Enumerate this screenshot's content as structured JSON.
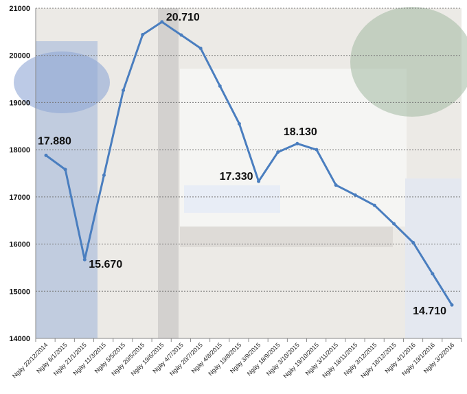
{
  "chart_data": {
    "type": "line",
    "title": "",
    "xlabel": "",
    "ylabel": "",
    "ylim": [
      14000,
      21000
    ],
    "yticks": [
      "14000",
      "15000",
      "16000",
      "17000",
      "18000",
      "19000",
      "20000",
      "21000"
    ],
    "grid": true,
    "legend": "none",
    "line_color": "#4a7ebf",
    "categories": [
      "Ngày 22/12/2014",
      "Ngày 6/1/2015",
      "Ngày 21/1/2015",
      "Ngày 11/3/2015",
      "Ngày 5/5/2015",
      "Ngày 20/5/2015",
      "Ngày 19/6/2015",
      "Ngày 4/7/2015",
      "Ngày 20/7/2015",
      "Ngày 4/8/2015",
      "Ngày 19/8/2015",
      "Ngày 3/9/2015",
      "Ngày 18/9/2015",
      "Ngày 3/10/2015",
      "Ngày 19/10/2015",
      "Ngày 3/11/2015",
      "Ngày 18/11/2015",
      "Ngày 3/12/2015",
      "Ngày 18/12/2015",
      "Ngày 4/1/2016",
      "Ngày 19/1/2016",
      "Ngày 3/2/2016"
    ],
    "series": [
      {
        "values": [
          17880,
          17580,
          15670,
          17460,
          19260,
          20440,
          20710,
          20430,
          20150,
          19350,
          18550,
          17330,
          17950,
          18130,
          18000,
          17250,
          17040,
          16820,
          16430,
          16030,
          15370,
          14710
        ]
      }
    ],
    "data_labels": [
      {
        "index": 0,
        "text": "17.880"
      },
      {
        "index": 2,
        "text": "15.670"
      },
      {
        "index": 6,
        "text": "20.710"
      },
      {
        "index": 11,
        "text": "17.330"
      },
      {
        "index": 13,
        "text": "18.130"
      },
      {
        "index": 21,
        "text": "14.710"
      }
    ]
  }
}
